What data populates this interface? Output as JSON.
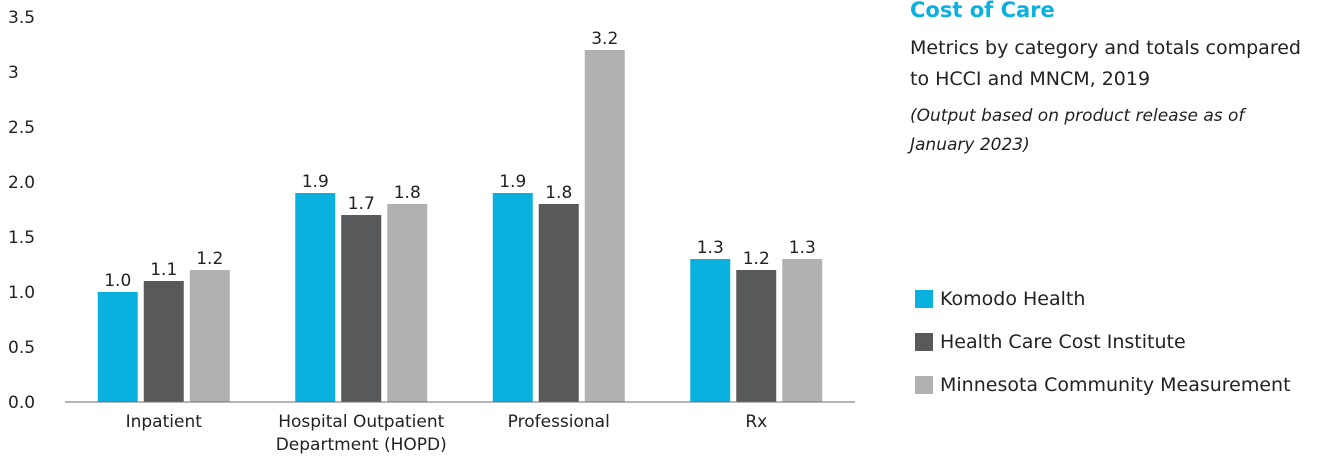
{
  "chart_data": {
    "type": "bar",
    "title": "Cost of Care",
    "subtitle": "Metrics by category and totals compared to HCCI and MNCM, 2019",
    "note": "(Output based on product release as of January 2023)",
    "categories": [
      [
        "Inpatient"
      ],
      [
        "Hospital Outpatient",
        "Department (HOPD)"
      ],
      [
        "Professional"
      ],
      [
        "Rx"
      ]
    ],
    "series": [
      {
        "name": "Komodo Health",
        "color": "#0ab0de",
        "values": [
          1.0,
          1.9,
          1.9,
          1.3
        ],
        "labels": [
          "1.0",
          "1.9",
          "1.9",
          "1.3"
        ]
      },
      {
        "name": "Health Care Cost Institute",
        "color": "#58595b",
        "values": [
          1.1,
          1.7,
          1.8,
          1.2
        ],
        "labels": [
          "1.1",
          "1.7",
          "1.8",
          "1.2"
        ]
      },
      {
        "name": "Minnesota Community Measurement",
        "color": "#b0b1b3",
        "values": [
          1.2,
          1.8,
          3.2,
          1.3
        ],
        "labels": [
          "1.2",
          "1.8",
          "3.2",
          "1.3"
        ]
      }
    ],
    "y_ticks": [
      {
        "value": 0,
        "label": "0.0"
      },
      {
        "value": 0.5,
        "label": "0.5"
      },
      {
        "value": 1.0,
        "label": "1.0"
      },
      {
        "value": 1.5,
        "label": "1.5"
      },
      {
        "value": 2.0,
        "label": "2.0"
      },
      {
        "value": 2.5,
        "label": "2.5"
      },
      {
        "value": 3.0,
        "label": "3"
      },
      {
        "value": 3.5,
        "label": "3.5"
      }
    ],
    "xlabel": "",
    "ylabel": "",
    "ylim": [
      0,
      3.5
    ],
    "grid": false,
    "legend_position": "right"
  }
}
